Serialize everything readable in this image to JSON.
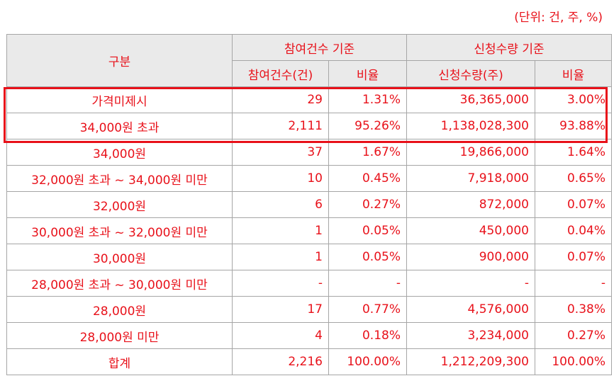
{
  "unit_label": "(단위: 건, 주, %)",
  "header": {
    "category": "구분",
    "group_participation": "참여건수 기준",
    "group_quantity": "신청수량 기준",
    "col_count": "참여건수(건)",
    "col_count_ratio": "비율",
    "col_qty": "신청수량(주)",
    "col_qty_ratio": "비율"
  },
  "rows": [
    {
      "category": "가격미제시",
      "count": "29",
      "count_ratio": "1.31%",
      "qty": "36,365,000",
      "qty_ratio": "3.00%"
    },
    {
      "category": "34,000원 초과",
      "count": "2,111",
      "count_ratio": "95.26%",
      "qty": "1,138,028,300",
      "qty_ratio": "93.88%"
    },
    {
      "category": "34,000원",
      "count": "37",
      "count_ratio": "1.67%",
      "qty": "19,866,000",
      "qty_ratio": "1.64%"
    },
    {
      "category": "32,000원 초과 ~ 34,000원 미만",
      "count": "10",
      "count_ratio": "0.45%",
      "qty": "7,918,000",
      "qty_ratio": "0.65%"
    },
    {
      "category": "32,000원",
      "count": "6",
      "count_ratio": "0.27%",
      "qty": "872,000",
      "qty_ratio": "0.07%"
    },
    {
      "category": "30,000원 초과 ~ 32,000원 미만",
      "count": "1",
      "count_ratio": "0.05%",
      "qty": "450,000",
      "qty_ratio": "0.04%"
    },
    {
      "category": "30,000원",
      "count": "1",
      "count_ratio": "0.05%",
      "qty": "900,000",
      "qty_ratio": "0.07%"
    },
    {
      "category": "28,000원 초과 ~ 30,000원 미만",
      "count": "-",
      "count_ratio": "-",
      "qty": "-",
      "qty_ratio": "-"
    },
    {
      "category": "28,000원",
      "count": "17",
      "count_ratio": "0.77%",
      "qty": "4,576,000",
      "qty_ratio": "0.38%"
    },
    {
      "category": "28,000원 미만",
      "count": "4",
      "count_ratio": "0.18%",
      "qty": "3,234,000",
      "qty_ratio": "0.27%"
    },
    {
      "category": "합계",
      "count": "2,216",
      "count_ratio": "100.00%",
      "qty": "1,212,209,300",
      "qty_ratio": "100.00%"
    }
  ],
  "colors": {
    "text": "#e8111a",
    "header_bg": "#eaeaea",
    "border": "#a6a6a6",
    "highlight": "#e8111a"
  }
}
